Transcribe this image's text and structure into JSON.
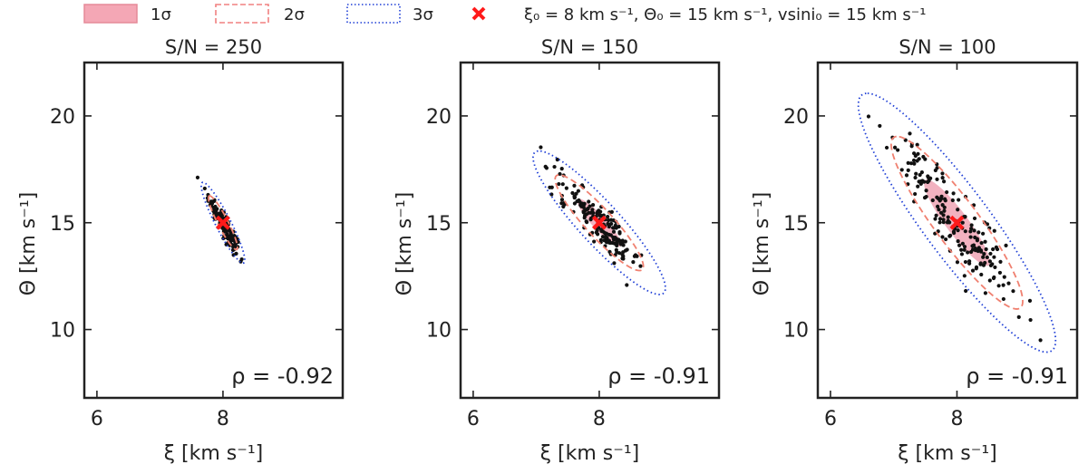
{
  "legend": {
    "items": [
      {
        "label": "1σ",
        "style": "fill",
        "color": "#f4a7b5",
        "edge": "#e58a98"
      },
      {
        "label": "2σ",
        "style": "dashed",
        "color": "#f08080"
      },
      {
        "label": "3σ",
        "style": "dotted",
        "color": "#1f3fd6"
      },
      {
        "label": "ξ₀ = 8 km s⁻¹, Θ₀ = 15 km s⁻¹, vsini₀ = 15 km s⁻¹",
        "style": "x-marker",
        "color": "#ff1a1a"
      }
    ]
  },
  "chart_data": [
    {
      "type": "scatter",
      "title": "S/N = 250",
      "xlabel": "ξ [km s⁻¹]",
      "ylabel": "Θ [km s⁻¹]",
      "xlim": [
        5.8,
        9.9
      ],
      "ylim": [
        6.8,
        22.5
      ],
      "xticks": [
        6,
        8
      ],
      "yticks": [
        10,
        15,
        20
      ],
      "rho": "ρ = -0.92",
      "true_point": {
        "x": 8,
        "y": 15
      },
      "sigma_x": 0.115,
      "sigma_y": 0.63,
      "correlation": -0.92,
      "n_points": 160
    },
    {
      "type": "scatter",
      "title": "S/N = 150",
      "xlabel": "ξ [km s⁻¹]",
      "ylabel": "Θ [km s⁻¹]",
      "xlim": [
        5.8,
        9.9
      ],
      "ylim": [
        6.8,
        22.5
      ],
      "xticks": [
        6,
        8
      ],
      "yticks": [
        10,
        15,
        20
      ],
      "rho": "ρ = -0.91",
      "true_point": {
        "x": 8,
        "y": 15
      },
      "sigma_x": 0.35,
      "sigma_y": 1.12,
      "correlation": -0.91,
      "n_points": 170
    },
    {
      "type": "scatter",
      "title": "S/N = 100",
      "xlabel": "ξ [km s⁻¹]",
      "ylabel": "Θ [km s⁻¹]",
      "xlim": [
        5.8,
        9.9
      ],
      "ylim": [
        6.8,
        22.5
      ],
      "xticks": [
        6,
        8
      ],
      "yticks": [
        10,
        15,
        20
      ],
      "rho": "ρ = -0.91",
      "true_point": {
        "x": 8,
        "y": 15
      },
      "sigma_x": 0.52,
      "sigma_y": 2.02,
      "correlation": -0.91,
      "n_points": 190
    }
  ]
}
